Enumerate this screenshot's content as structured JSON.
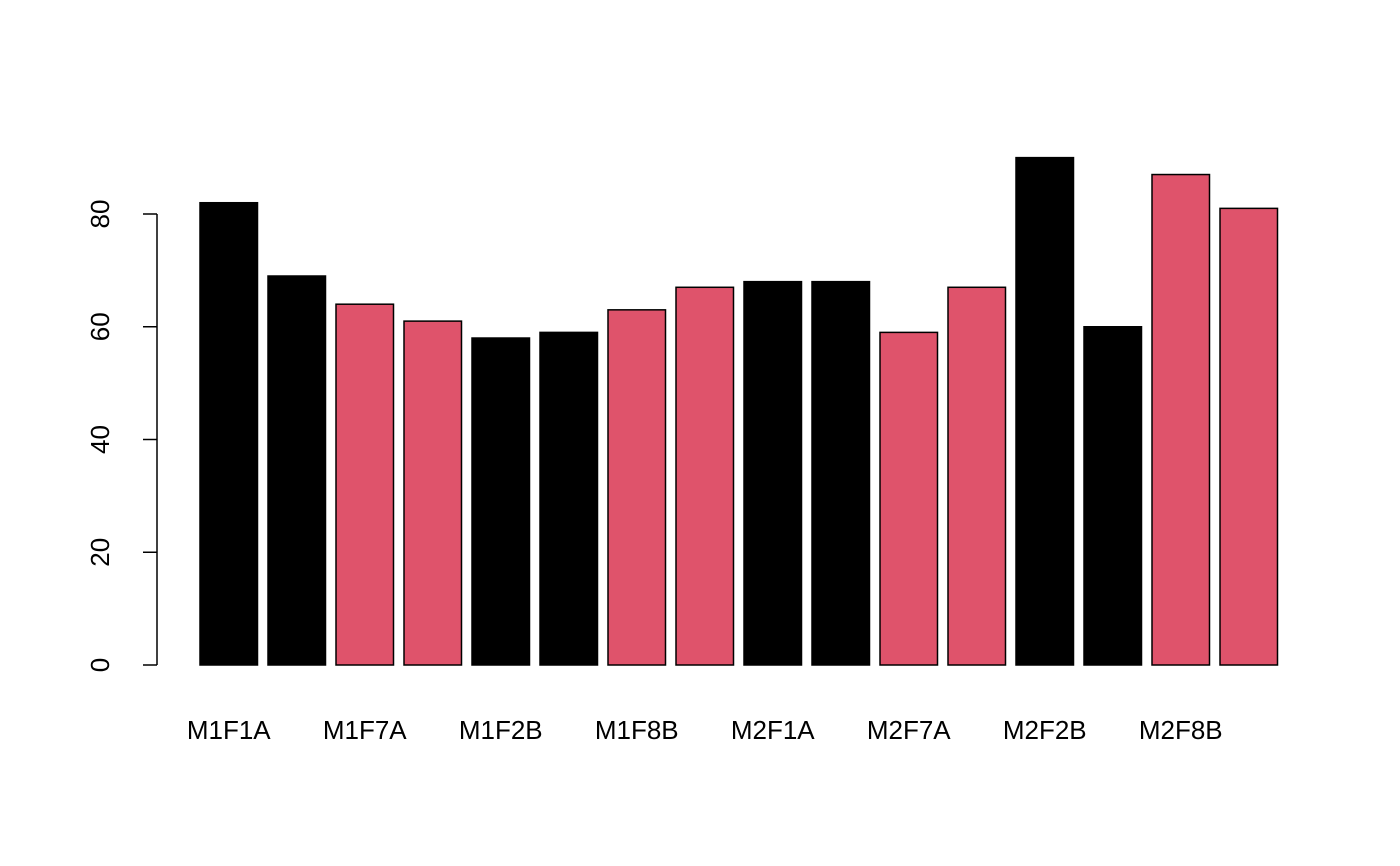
{
  "chart_data": {
    "type": "bar",
    "title": "",
    "xlabel": "",
    "ylabel": "",
    "ylim": [
      0,
      90
    ],
    "y_ticks": [
      0,
      20,
      40,
      60,
      80
    ],
    "y_tick_labels": [
      "0",
      "20",
      "40",
      "60",
      "80"
    ],
    "grid": false,
    "colors": {
      "black": "#000000",
      "red": "#DF536B"
    },
    "categories": [
      "M1F1A",
      "",
      "M1F7A",
      "",
      "M1F2B",
      "",
      "M1F8B",
      "",
      "M2F1A",
      "",
      "M2F7A",
      "",
      "M2F2B",
      "",
      "M2F8B",
      ""
    ],
    "x_tick_labels": [
      "M1F1A",
      "M1F7A",
      "M1F2B",
      "M1F8B",
      "M2F1A",
      "M2F7A",
      "M2F2B",
      "M2F8B"
    ],
    "values": [
      82,
      69,
      64,
      61,
      58,
      59,
      63,
      67,
      68,
      68,
      59,
      67,
      90,
      60,
      87,
      81
    ],
    "bar_colors": [
      "black",
      "black",
      "red",
      "red",
      "black",
      "black",
      "red",
      "red",
      "black",
      "black",
      "red",
      "red",
      "black",
      "black",
      "red",
      "red"
    ]
  }
}
